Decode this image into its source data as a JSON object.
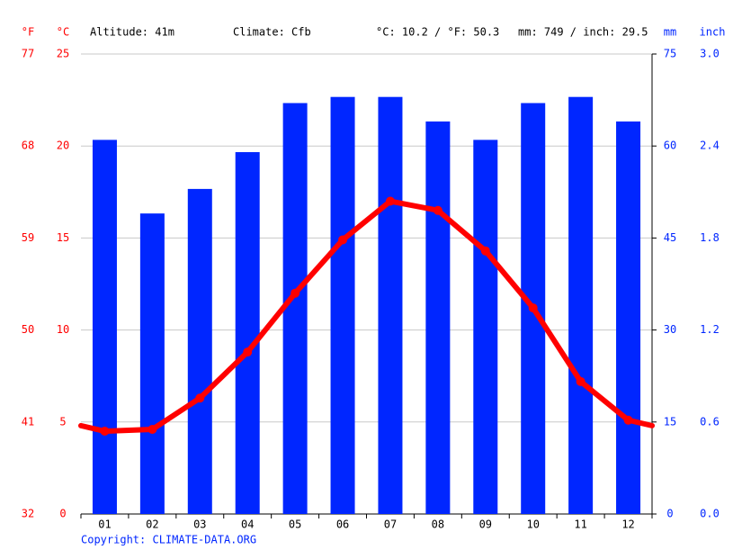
{
  "chart_data": {
    "type": "climate",
    "header": {
      "altitude": "Altitude: 41m",
      "climate": "Climate: Cfb",
      "temp_avg": "°C: 10.2 / °F: 50.3",
      "precip_total": "mm: 749 / inch: 29.5"
    },
    "axis_labels": {
      "f": "°F",
      "c": "°C",
      "mm": "mm",
      "inch": "inch"
    },
    "categories": [
      "01",
      "02",
      "03",
      "04",
      "05",
      "06",
      "07",
      "08",
      "09",
      "10",
      "11",
      "12"
    ],
    "series": [
      {
        "type": "bar",
        "axis": "y2",
        "color": "#0026ff",
        "values": [
          61,
          49,
          53,
          59,
          67,
          68,
          68,
          64,
          61,
          67,
          68,
          64
        ]
      },
      {
        "type": "line",
        "axis": "y",
        "color": "#ff0000",
        "values": [
          4.5,
          4.6,
          6.3,
          8.8,
          12.0,
          14.9,
          17.0,
          16.5,
          14.3,
          11.2,
          7.2,
          5.1
        ]
      }
    ],
    "ylim": [
      0,
      25
    ],
    "yticks": [
      0,
      5,
      10,
      15,
      20,
      25
    ],
    "yflim": [
      32,
      77
    ],
    "yfticks": [
      32,
      41,
      50,
      59,
      68,
      77
    ],
    "y2lim": [
      0,
      75
    ],
    "y2ticks": [
      0,
      15,
      30,
      45,
      60,
      75
    ],
    "y2inchlim": [
      0,
      3
    ],
    "y2inchticks": [
      {
        "value": 0,
        "label": "0.0"
      },
      0.6,
      1.2,
      1.8,
      2.4,
      {
        "value": 3,
        "label": "3.0"
      }
    ],
    "grid": true,
    "copyright": "Copyright: CLIMATE-DATA.ORG"
  }
}
